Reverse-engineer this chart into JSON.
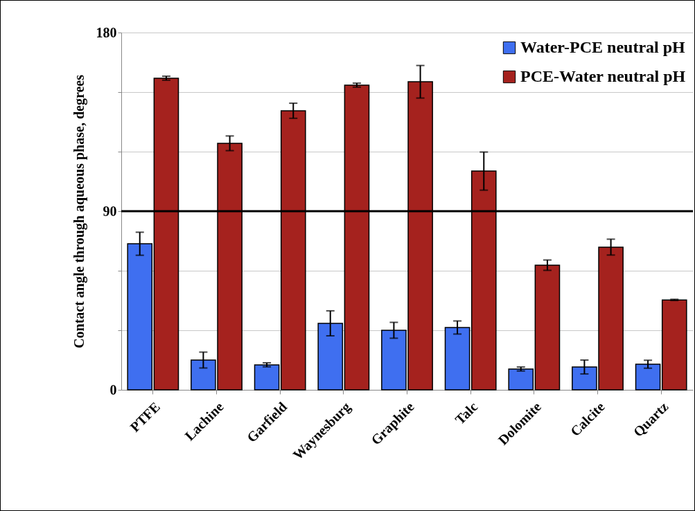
{
  "chart_data": {
    "type": "bar",
    "ylabel": "Contact angle through aqueous phase, degrees",
    "categories": [
      "PTFE",
      "Lachine",
      "Garfield",
      "Waynesburg",
      "Graphite",
      "Talc",
      "Dolomite",
      "Calcite",
      "Quartz"
    ],
    "series": [
      {
        "name": "Water-PCE neutral pH",
        "color": "#3f6ff0",
        "values": [
          73.6,
          15,
          12.6,
          33.5,
          30,
          31.4,
          10.5,
          11.5,
          12.9
        ],
        "errors": [
          5.8,
          4,
          1,
          6.3,
          4,
          3.3,
          1,
          3.5,
          2
        ]
      },
      {
        "name": "PCE-Water neutral pH",
        "color": "#a5221e",
        "values": [
          157,
          124.2,
          140.6,
          153.5,
          155.2,
          110.2,
          62.8,
          71.9,
          45.3
        ],
        "errors": [
          1,
          3.7,
          3.8,
          1,
          8.2,
          9.6,
          2.6,
          4,
          0.3
        ]
      }
    ],
    "ylim": [
      0,
      180
    ],
    "yticks": [
      0,
      {
        "value": 30,
        "label": null
      },
      {
        "value": 60,
        "label": null
      },
      90,
      {
        "value": 120,
        "label": null
      },
      {
        "value": 150,
        "label": null
      },
      180
    ],
    "grid": "y",
    "ref_lines": [
      {
        "axis": "y",
        "value": 90
      }
    ],
    "legend": "top right"
  }
}
